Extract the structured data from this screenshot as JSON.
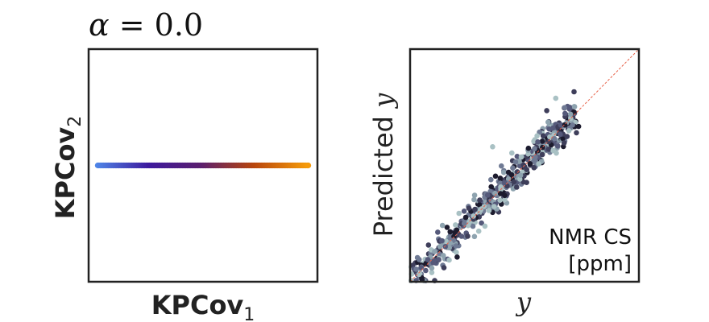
{
  "chart_data": [
    {
      "type": "scatter",
      "title": "α = 0.0",
      "title_var": "α",
      "title_eq": " = 0.0",
      "xlabel_main": "KPCov",
      "xlabel_sub": "1",
      "ylabel_main": "KPCov",
      "ylabel_sub": "2",
      "xticks": false,
      "yticks": false,
      "xlim": [
        0,
        1
      ],
      "ylim": [
        -1,
        1
      ],
      "series_color_scale": [
        "#4f86e8",
        "#3d1a9e",
        "#5b1f6e",
        "#b8450c",
        "#f59a0a"
      ],
      "x_range": [
        0.04,
        0.96
      ],
      "y_value": 0.0
    },
    {
      "type": "scatter",
      "xlabel": "y",
      "ylabel": "Predicted y",
      "annotation_line1": "NMR CS",
      "annotation_line2": "[ppm]",
      "xticks": false,
      "yticks": false,
      "diagonal": true,
      "diagonal_color": "#e8634a",
      "xlim": [
        0,
        1
      ],
      "ylim": [
        0,
        1
      ],
      "point_colors": [
        "#1c1b2e",
        "#3e3e5a",
        "#55597a",
        "#6f7a94",
        "#8ea3af",
        "#a9c1c4"
      ],
      "x_range": [
        0.0,
        0.72
      ],
      "prediction_spread": 0.035
    }
  ]
}
